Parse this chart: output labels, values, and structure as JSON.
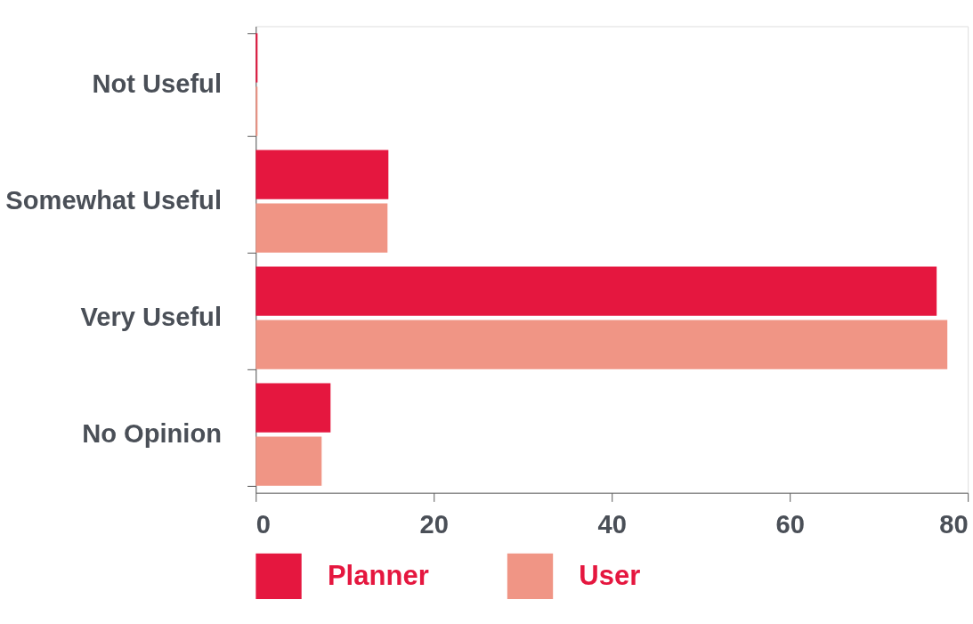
{
  "chart_data": {
    "type": "bar",
    "orientation": "horizontal",
    "categories": [
      "Not Useful",
      "Somewhat Useful",
      "Very Useful",
      "No Opinion"
    ],
    "series": [
      {
        "name": "Planner",
        "color": "#e5173f",
        "values": [
          0.2,
          14.9,
          76.5,
          8.4
        ]
      },
      {
        "name": "User",
        "color": "#f09585",
        "values": [
          0.2,
          14.8,
          77.7,
          7.4
        ]
      }
    ],
    "xlim": [
      0,
      80
    ],
    "xticks": [
      0,
      20,
      40,
      60,
      80
    ],
    "grid": false,
    "legend": "bottom"
  }
}
